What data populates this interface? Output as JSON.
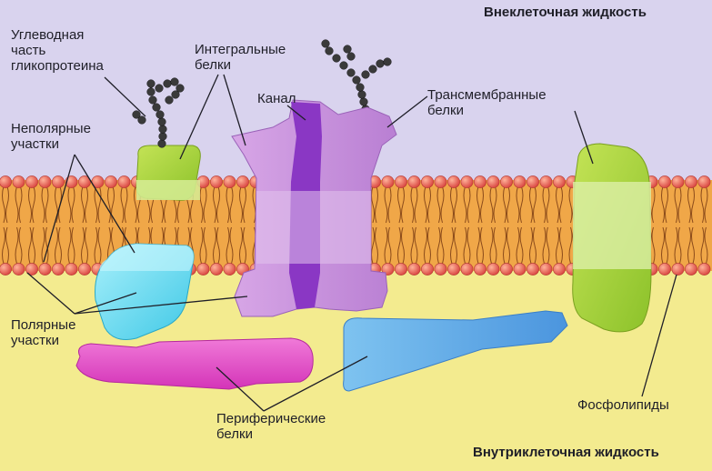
{
  "regions": {
    "extracellular": "Внеклеточная жидкость",
    "intracellular": "Внутриклеточная жидкость"
  },
  "labels": {
    "glycoprotein_carb": "Углеводная\nчасть\nгликопротеина",
    "integral": "Интегральные\nбелки",
    "channel": "Канал",
    "transmembrane": "Трансмембранные\nбелки",
    "nonpolar": "Неполярные\nучастки",
    "polar": "Полярные\nучастки",
    "peripheral": "Периферические\nбелки",
    "phospholipids": "Фосфолипиды"
  },
  "colors": {
    "extracellular_bg": "#d9d3ee",
    "intracellular_bg": "#f3eb8f",
    "lipid_core": "#f0a748",
    "lipid_head": "#e04f4c",
    "channel_protein": "#c78fd8",
    "channel_pore": "#8a37c4",
    "green_protein": "#a7d23a",
    "cyan_protein": "#5fd6ec",
    "magenta_protein": "#e24fc8",
    "blue_protein": "#5aa6e6",
    "sugar_chain": "#333333"
  }
}
